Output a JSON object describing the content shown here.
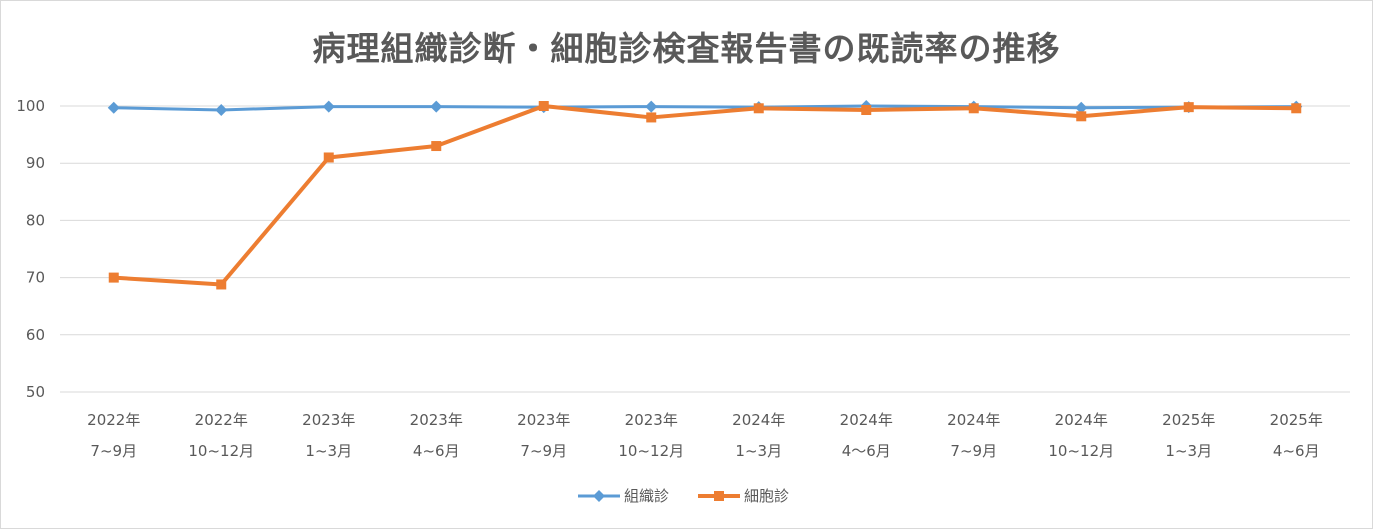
{
  "chart_data": {
    "type": "line",
    "title": "病理組織診断・細胞診検査報告書の既読率の推移",
    "categories": [
      [
        "2022年",
        "7~9月"
      ],
      [
        "2022年",
        "10~12月"
      ],
      [
        "2023年",
        "1~3月"
      ],
      [
        "2023年",
        "4~6月"
      ],
      [
        "2023年",
        "7~9月"
      ],
      [
        "2023年",
        "10~12月"
      ],
      [
        "2024年",
        "1~3月"
      ],
      [
        "2024年",
        "4～6月"
      ],
      [
        "2024年",
        "7~9月"
      ],
      [
        "2024年",
        "10~12月"
      ],
      [
        "2025年",
        "1~3月"
      ],
      [
        "2025年",
        "4~6月"
      ]
    ],
    "series": [
      {
        "name": "組織診",
        "color": "#5b9bd5",
        "marker": "diamond",
        "values": [
          99.7,
          99.3,
          99.9,
          99.9,
          99.8,
          99.9,
          99.8,
          100.0,
          99.9,
          99.7,
          99.8,
          99.9
        ]
      },
      {
        "name": "細胞診",
        "color": "#ed7d31",
        "marker": "square",
        "values": [
          70.0,
          68.8,
          91.0,
          93.0,
          100.0,
          98.0,
          99.6,
          99.3,
          99.6,
          98.2,
          99.8,
          99.6
        ]
      }
    ],
    "yticks": [
      50,
      60,
      70,
      80,
      90,
      100
    ],
    "ylim": [
      50,
      100
    ],
    "grid": true,
    "legend_position": "bottom"
  }
}
